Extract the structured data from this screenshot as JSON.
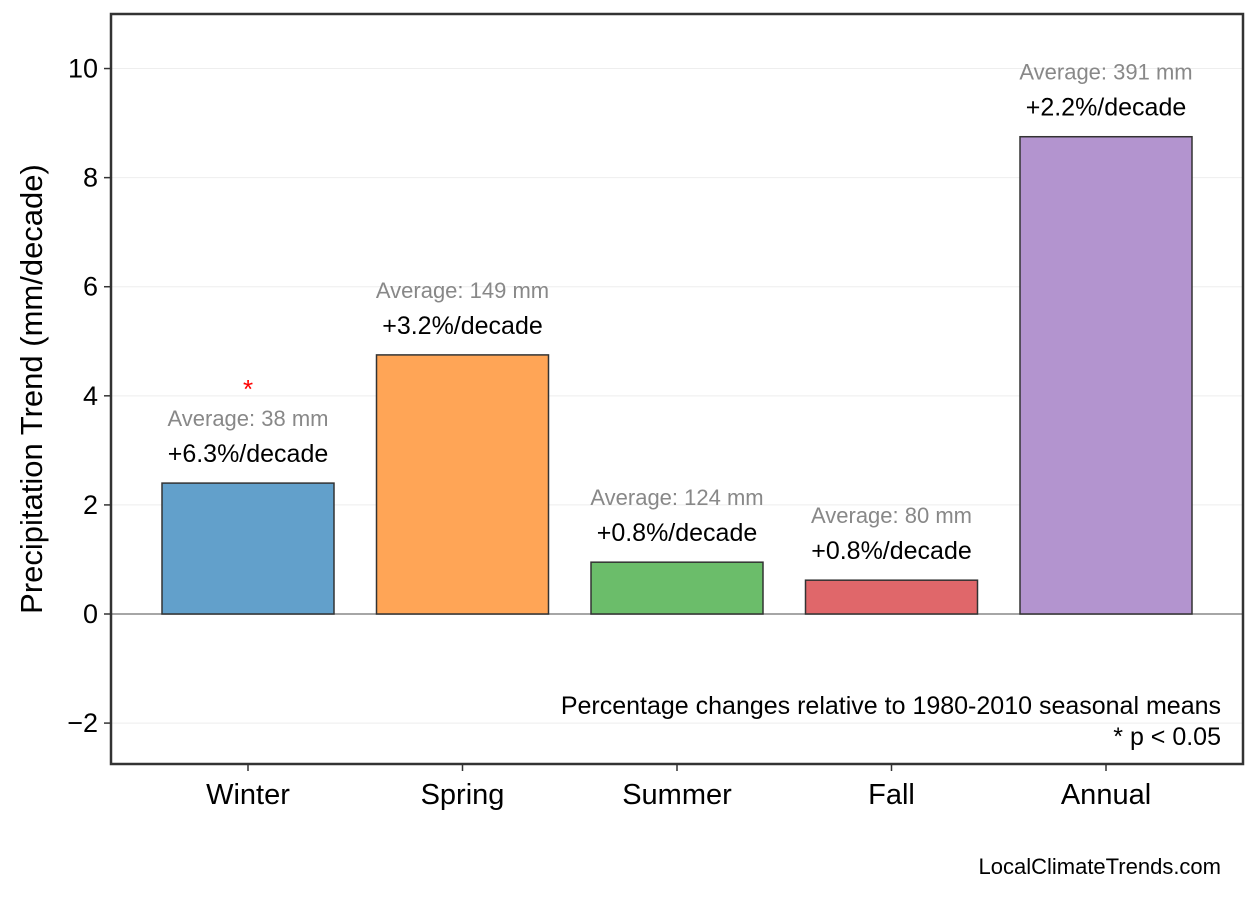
{
  "chart_data": {
    "type": "bar",
    "categories": [
      "Winter",
      "Spring",
      "Summer",
      "Fall",
      "Annual"
    ],
    "values": [
      2.4,
      4.75,
      0.95,
      0.62,
      8.75
    ],
    "colors": [
      "#62a0cb",
      "#ffa556",
      "#6bbd6a",
      "#e0676a",
      "#b394cf"
    ],
    "pct_labels": [
      "+6.3%/decade",
      "+3.2%/decade",
      "+0.8%/decade",
      "+0.8%/decade",
      "+2.2%/decade"
    ],
    "avg_labels": [
      "Average: 38 mm",
      "Average: 149 mm",
      "Average: 124 mm",
      "Average: 80 mm",
      "Average: 391 mm"
    ],
    "significant": [
      true,
      false,
      false,
      false,
      false
    ],
    "significance_marker": "*",
    "significance_color": "#ff0000",
    "xlabel": "",
    "ylabel": "Precipitation Trend (mm/decade)",
    "ylim": [
      -2.75,
      11.0
    ],
    "yticks": [
      -2,
      0,
      2,
      4,
      6,
      8,
      10
    ],
    "ytick_labels": [
      "−2",
      "0",
      "2",
      "4",
      "6",
      "8",
      "10"
    ],
    "grid": true,
    "annotation_lines": [
      "Percentage changes relative to 1980-2010 seasonal means",
      "* p < 0.05"
    ],
    "source": "LocalClimateTrends.com"
  }
}
